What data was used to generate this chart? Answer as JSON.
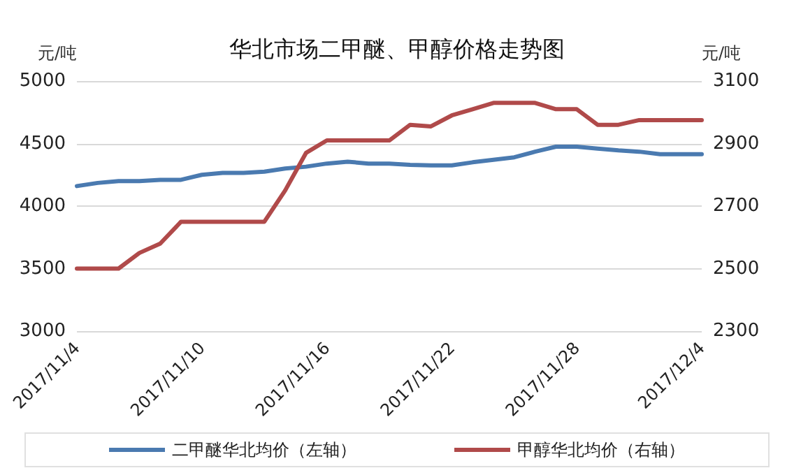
{
  "chart_data": {
    "type": "line",
    "title": "华北市场二甲醚、甲醇价格走势图",
    "ylabel": "元/吨",
    "y2label": "元/吨",
    "categories": [
      "2017/11/4",
      null,
      null,
      null,
      null,
      null,
      "2017/11/10",
      null,
      null,
      null,
      null,
      null,
      "2017/11/16",
      null,
      null,
      null,
      null,
      null,
      "2017/11/22",
      null,
      null,
      null,
      null,
      null,
      "2017/11/28",
      null,
      null,
      null,
      null,
      null,
      "2017/12/4"
    ],
    "series": [
      {
        "name": "二甲醚华北均价（左轴）",
        "color": "#4a7ab0",
        "values": [
          4160,
          4185,
          4200,
          4200,
          4210,
          4210,
          4250,
          4265,
          4265,
          4275,
          4300,
          4315,
          4340,
          4355,
          4340,
          4340,
          4330,
          4325,
          4325,
          4350,
          4370,
          4390,
          4435,
          4475,
          4475,
          4460,
          4445,
          4435,
          4415,
          4415,
          4415
        ]
      },
      {
        "name": "甲醇华北均价（右轴）",
        "color": "#b04a4a",
        "axis": "y2",
        "values": [
          2500,
          2500,
          2500,
          2550,
          2580,
          2650,
          2650,
          2650,
          2650,
          2650,
          2750,
          2870,
          2910,
          2910,
          2910,
          2910,
          2960,
          2955,
          2990,
          3010,
          3030,
          3030,
          3030,
          3010,
          3010,
          2960,
          2960,
          2975,
          2975,
          2975,
          2975
        ]
      }
    ],
    "ylim": [
      3000,
      5000
    ],
    "yticks": [
      3000,
      3500,
      4000,
      4500,
      5000
    ],
    "y2lim": [
      2300,
      3100
    ],
    "y2ticks": [
      2300,
      2500,
      2700,
      2900,
      3100
    ],
    "grid": "y",
    "legend": "bottom",
    "marker": "none",
    "line_style": "solid"
  }
}
